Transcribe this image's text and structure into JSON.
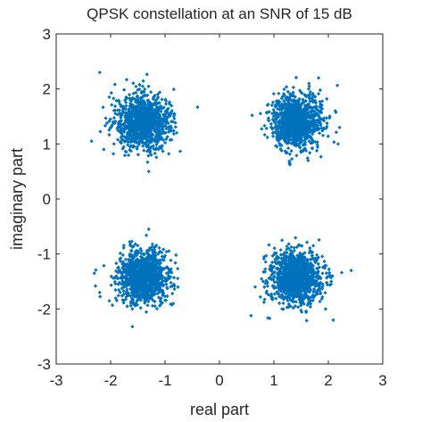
{
  "chart_data": {
    "type": "scatter",
    "title": "QPSK constellation at an SNR of 15 dB",
    "xlabel": "real part",
    "ylabel": "imaginary part",
    "xlim": [
      -3,
      3
    ],
    "ylim": [
      -3,
      3
    ],
    "xticks": [
      "-3",
      "-2",
      "-1",
      "0",
      "1",
      "2",
      "3"
    ],
    "yticks": [
      "-3",
      "-2",
      "-1",
      "0",
      "1",
      "2",
      "3"
    ],
    "grid": false,
    "legend": "none",
    "marker_color": "#0072BD",
    "series": [
      {
        "clusters": [
          {
            "center": [
              -1.41,
              1.41
            ],
            "spread": 0.24
          },
          {
            "center": [
              1.41,
              1.41
            ],
            "spread": 0.24
          },
          {
            "center": [
              -1.41,
              -1.41
            ],
            "spread": 0.24
          },
          {
            "center": [
              1.41,
              -1.41
            ],
            "spread": 0.24
          }
        ],
        "points": [
          [
            -2.2,
            2.3
          ],
          [
            -2.35,
            1.05
          ],
          [
            -1.95,
            0.82
          ],
          [
            -0.83,
            1.55
          ],
          [
            -1.3,
            0.5
          ],
          [
            1.82,
            2.2
          ],
          [
            0.6,
            1.52
          ],
          [
            2.18,
            1.0
          ],
          [
            1.5,
            0.85
          ],
          [
            1.65,
            2.05
          ],
          [
            -2.2,
            -1.7
          ],
          [
            -2.3,
            -1.35
          ],
          [
            -1.6,
            -2.32
          ],
          [
            -0.85,
            -1.9
          ],
          [
            -1.3,
            -0.55
          ],
          [
            2.42,
            -1.3
          ],
          [
            0.58,
            -2.12
          ],
          [
            1.95,
            -2.0
          ],
          [
            1.15,
            -0.75
          ],
          [
            2.05,
            -1.55
          ]
        ]
      }
    ]
  }
}
